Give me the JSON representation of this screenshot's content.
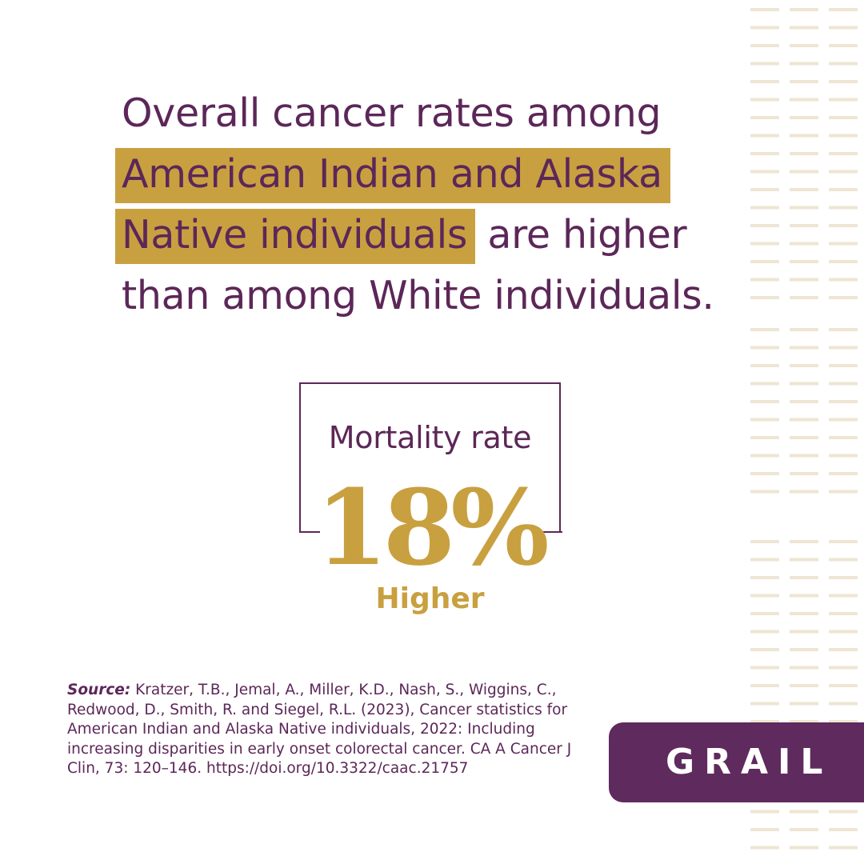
{
  "colors": {
    "primary": "#5c2758",
    "accent": "#c9a040",
    "stripe": "#efe6d2",
    "logo_bg": "#5f2a5e"
  },
  "headline": {
    "line1": "Overall cancer rates among",
    "line2_highlight": "American Indian and Alaska",
    "line3_highlight": "Native individuals",
    "line3_rest": " are higher",
    "line4": "than among White individuals."
  },
  "stat": {
    "label": "Mortality rate",
    "value": "18%",
    "sub": "Higher"
  },
  "source": {
    "label": "Source:",
    "text": " Kratzer, T.B., Jemal, A., Miller, K.D., Nash, S., Wiggins, C., Redwood, D., Smith, R. and Siegel, R.L. (2023), Cancer statistics for American Indian and Alaska Native individuals, 2022: Including increasing disparities in early onset colorectal cancer. CA A Cancer J Clin, 73: 120–146. https://doi.org/10.3322/caac.21757"
  },
  "logo": {
    "text": "GRAIL"
  }
}
